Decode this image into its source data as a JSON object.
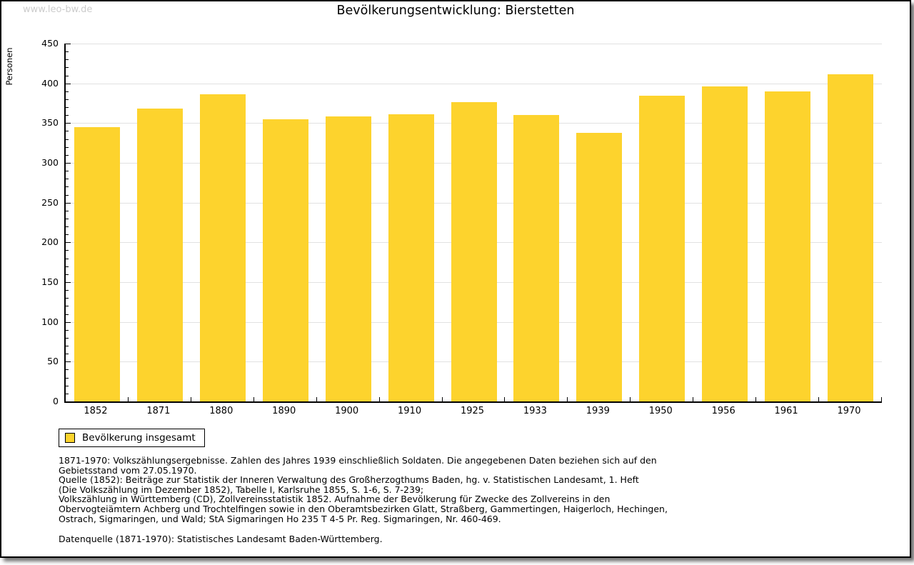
{
  "watermark": "www.leo-bw.de",
  "title": "Bevölkerungsentwicklung: Bierstetten",
  "chart_data": {
    "type": "bar",
    "title": "Bevölkerungsentwicklung: Bierstetten",
    "xlabel": "",
    "ylabel": "Personen",
    "categories": [
      "1852",
      "1871",
      "1880",
      "1890",
      "1900",
      "1910",
      "1925",
      "1933",
      "1939",
      "1950",
      "1956",
      "1961",
      "1970"
    ],
    "series": [
      {
        "name": "Bevölkerung insgesamt",
        "values": [
          345,
          368,
          386,
          355,
          358,
          361,
          376,
          360,
          338,
          384,
          396,
          390,
          411
        ]
      }
    ],
    "ylim": [
      0,
      450
    ],
    "ytick_step": 50,
    "ytick_minor_step": 10,
    "grid": true,
    "legend_position": "bottom-left",
    "bar_color": "#FDD32D"
  },
  "legend": {
    "items": [
      {
        "label": "Bevölkerung insgesamt",
        "color": "#FDD32D"
      }
    ]
  },
  "footer": {
    "lines": [
      "1871-1970: Volkszählungsergebnisse. Zahlen des Jahres 1939 einschließlich Soldaten. Die angegebenen Daten beziehen sich auf den",
      "Gebietsstand vom 27.05.1970.",
      "Quelle (1852): Beiträge zur Statistik der Inneren Verwaltung des Großherzogthums Baden, hg. v. Statistischen Landesamt, 1. Heft",
      "(Die Volkszählung im Dezember 1852), Tabelle I, Karlsruhe 1855, S. 1-6, S. 7-239;",
      "Volkszählung in Württemberg (CD), Zollvereinsstatistik 1852. Aufnahme der Bevölkerung für Zwecke des Zollvereins in den",
      "Obervogteiämtern Achberg und Trochtelfingen sowie in den Oberamtsbezirken Glatt, Straßberg, Gammertingen, Haigerloch, Hechingen,",
      "Ostrach, Sigmaringen, und Wald; StA Sigmaringen Ho 235 T 4-5 Pr. Reg. Sigmaringen, Nr. 460-469."
    ],
    "datasource": "Datenquelle (1871-1970): Statistisches Landesamt Baden-Württemberg."
  },
  "colors": {
    "bar": "#FDD32D",
    "gridline": "#E2E2E2",
    "axis": "#000000",
    "watermark": "#CCCCCC",
    "text": "#000000",
    "background": "#FFFFFF"
  }
}
